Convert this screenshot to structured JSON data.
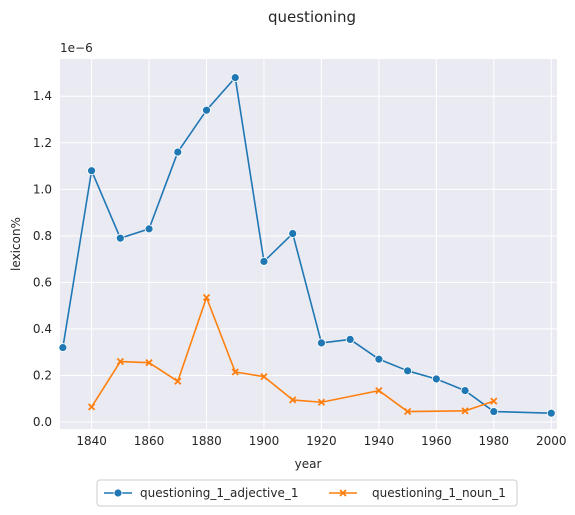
{
  "chart_data": {
    "type": "line",
    "title": "questioning",
    "xlabel": "year",
    "ylabel": "lexicon%",
    "y_offset_text": "1e−6",
    "y_scale": 1e-06,
    "xlim": [
      1829,
      2002
    ],
    "ylim": [
      -0.03,
      1.56
    ],
    "x_ticks": [
      1840,
      1860,
      1880,
      1900,
      1920,
      1940,
      1960,
      1980,
      2000
    ],
    "y_ticks": [
      0.0,
      0.2,
      0.4,
      0.6,
      0.8,
      1.0,
      1.2,
      1.4
    ],
    "y_tick_labels": [
      "0.0",
      "0.2",
      "0.4",
      "0.6",
      "0.8",
      "1.0",
      "1.2",
      "1.4"
    ],
    "grid": true,
    "legend_position": "bottom-center",
    "series": [
      {
        "name": "questioning_1_adjective_1",
        "color": "#1f77b4",
        "marker": "circle",
        "x": [
          1830,
          1840,
          1850,
          1860,
          1870,
          1880,
          1890,
          1900,
          1910,
          1920,
          1930,
          1940,
          1950,
          1960,
          1970,
          1980,
          2000
        ],
        "y": [
          0.32,
          1.08,
          0.79,
          0.83,
          1.16,
          1.34,
          1.48,
          0.69,
          0.81,
          0.34,
          0.355,
          0.27,
          0.22,
          0.185,
          0.135,
          0.045,
          0.038
        ]
      },
      {
        "name": "questioning_1_noun_1",
        "color": "#ff7f0e",
        "marker": "x",
        "x": [
          1840,
          1850,
          1860,
          1870,
          1880,
          1890,
          1900,
          1910,
          1920,
          1940,
          1950,
          1970,
          1980
        ],
        "y": [
          0.065,
          0.26,
          0.255,
          0.175,
          0.535,
          0.215,
          0.195,
          0.095,
          0.085,
          0.135,
          0.045,
          0.048,
          0.09
        ]
      }
    ]
  }
}
